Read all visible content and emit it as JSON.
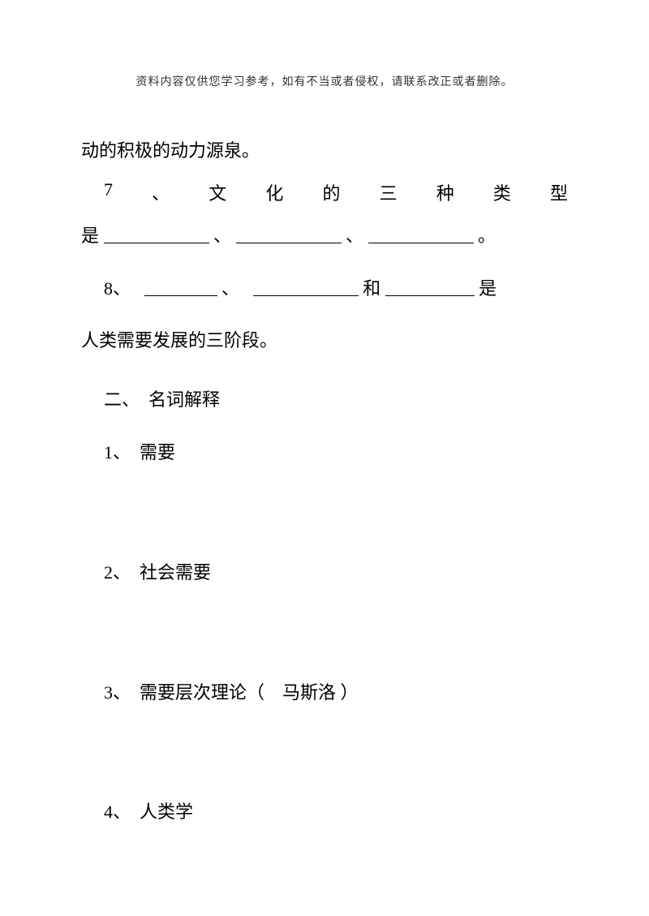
{
  "header": {
    "note": "资料内容仅供您学习参考，如有不当或者侵权，请联系改正或者删除。"
  },
  "body": {
    "line1": "动的积极的动力源泉。",
    "q7": {
      "num": "7",
      "sep": "、",
      "c1": "文",
      "c2": "化",
      "c3": "的",
      "c4": "三",
      "c5": "种",
      "c6": "类",
      "c7": "型"
    },
    "q7_answer": {
      "prefix": "是",
      "sep1": "、",
      "sep2": "、",
      "end": "。"
    },
    "q8": {
      "num": "8、",
      "sep1": "、",
      "mid": "和",
      "suffix": "是"
    },
    "q8_line2": "人类需要发展的三阶段。",
    "section2": "二、　名词解释",
    "term1": "1、　需要",
    "term2": "2、　社会需要",
    "term3": "3、　需要层次理论（　马斯洛 ）",
    "term4": "4、　人类学"
  }
}
